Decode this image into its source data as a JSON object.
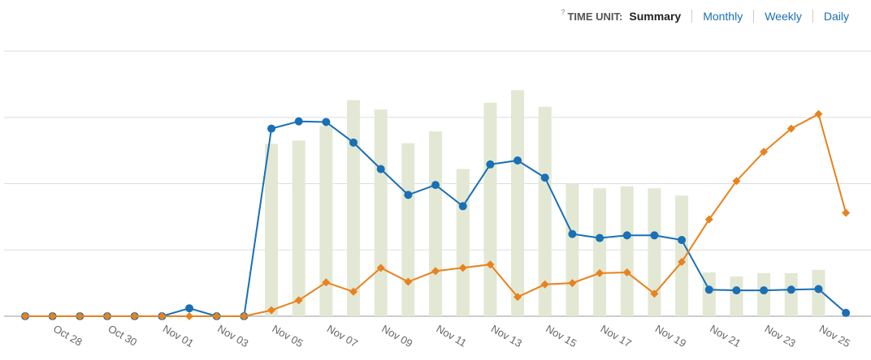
{
  "toolbar": {
    "help": "?",
    "label": "TIME UNIT:",
    "options": [
      "Summary",
      "Monthly",
      "Weekly",
      "Daily"
    ],
    "selected": 0
  },
  "chart_data": {
    "type": "combo",
    "categories": [
      null,
      "Oct 28",
      null,
      "Oct 30",
      null,
      "Nov 01",
      null,
      "Nov 03",
      null,
      "Nov 05",
      null,
      "Nov 07",
      null,
      "Nov 09",
      null,
      "Nov 11",
      null,
      "Nov 13",
      null,
      "Nov 15",
      null,
      "Nov 17",
      null,
      "Nov 19",
      null,
      "Nov 21",
      null,
      "Nov 23",
      null,
      "Nov 25",
      null
    ],
    "ylim": [
      0,
      4
    ],
    "yticks": [
      0,
      1,
      2,
      3,
      4
    ],
    "grid": true,
    "ytick_labels": false,
    "series": [
      {
        "type": "bar",
        "color": "#e3e8d4",
        "values": [
          0,
          0,
          0,
          0,
          0,
          0,
          0,
          0,
          0,
          2.6,
          2.65,
          2.87,
          3.26,
          3.12,
          2.61,
          2.79,
          2.22,
          3.22,
          3.41,
          3.16,
          2.0,
          1.93,
          1.96,
          1.93,
          1.82,
          0.66,
          0.6,
          0.65,
          0.65,
          0.7,
          0
        ]
      },
      {
        "type": "line",
        "marker": "circle",
        "color": "#1a6fb5",
        "values": [
          0,
          0,
          0,
          0,
          0,
          0,
          0.12,
          0,
          0,
          2.83,
          2.94,
          2.93,
          2.62,
          2.22,
          1.83,
          1.98,
          1.66,
          2.29,
          2.35,
          2.09,
          1.24,
          1.18,
          1.22,
          1.22,
          1.15,
          0.4,
          0.39,
          0.39,
          0.4,
          0.41,
          0.05
        ]
      },
      {
        "type": "line",
        "marker": "diamond",
        "color": "#e8821e",
        "values": [
          0,
          0,
          0,
          0,
          0,
          0,
          0,
          0,
          0,
          0.09,
          0.24,
          0.51,
          0.37,
          0.73,
          0.52,
          0.68,
          0.73,
          0.78,
          0.29,
          0.48,
          0.5,
          0.65,
          0.66,
          0.34,
          0.82,
          1.46,
          2.04,
          2.48,
          2.83,
          3.05,
          1.56
        ]
      }
    ]
  }
}
